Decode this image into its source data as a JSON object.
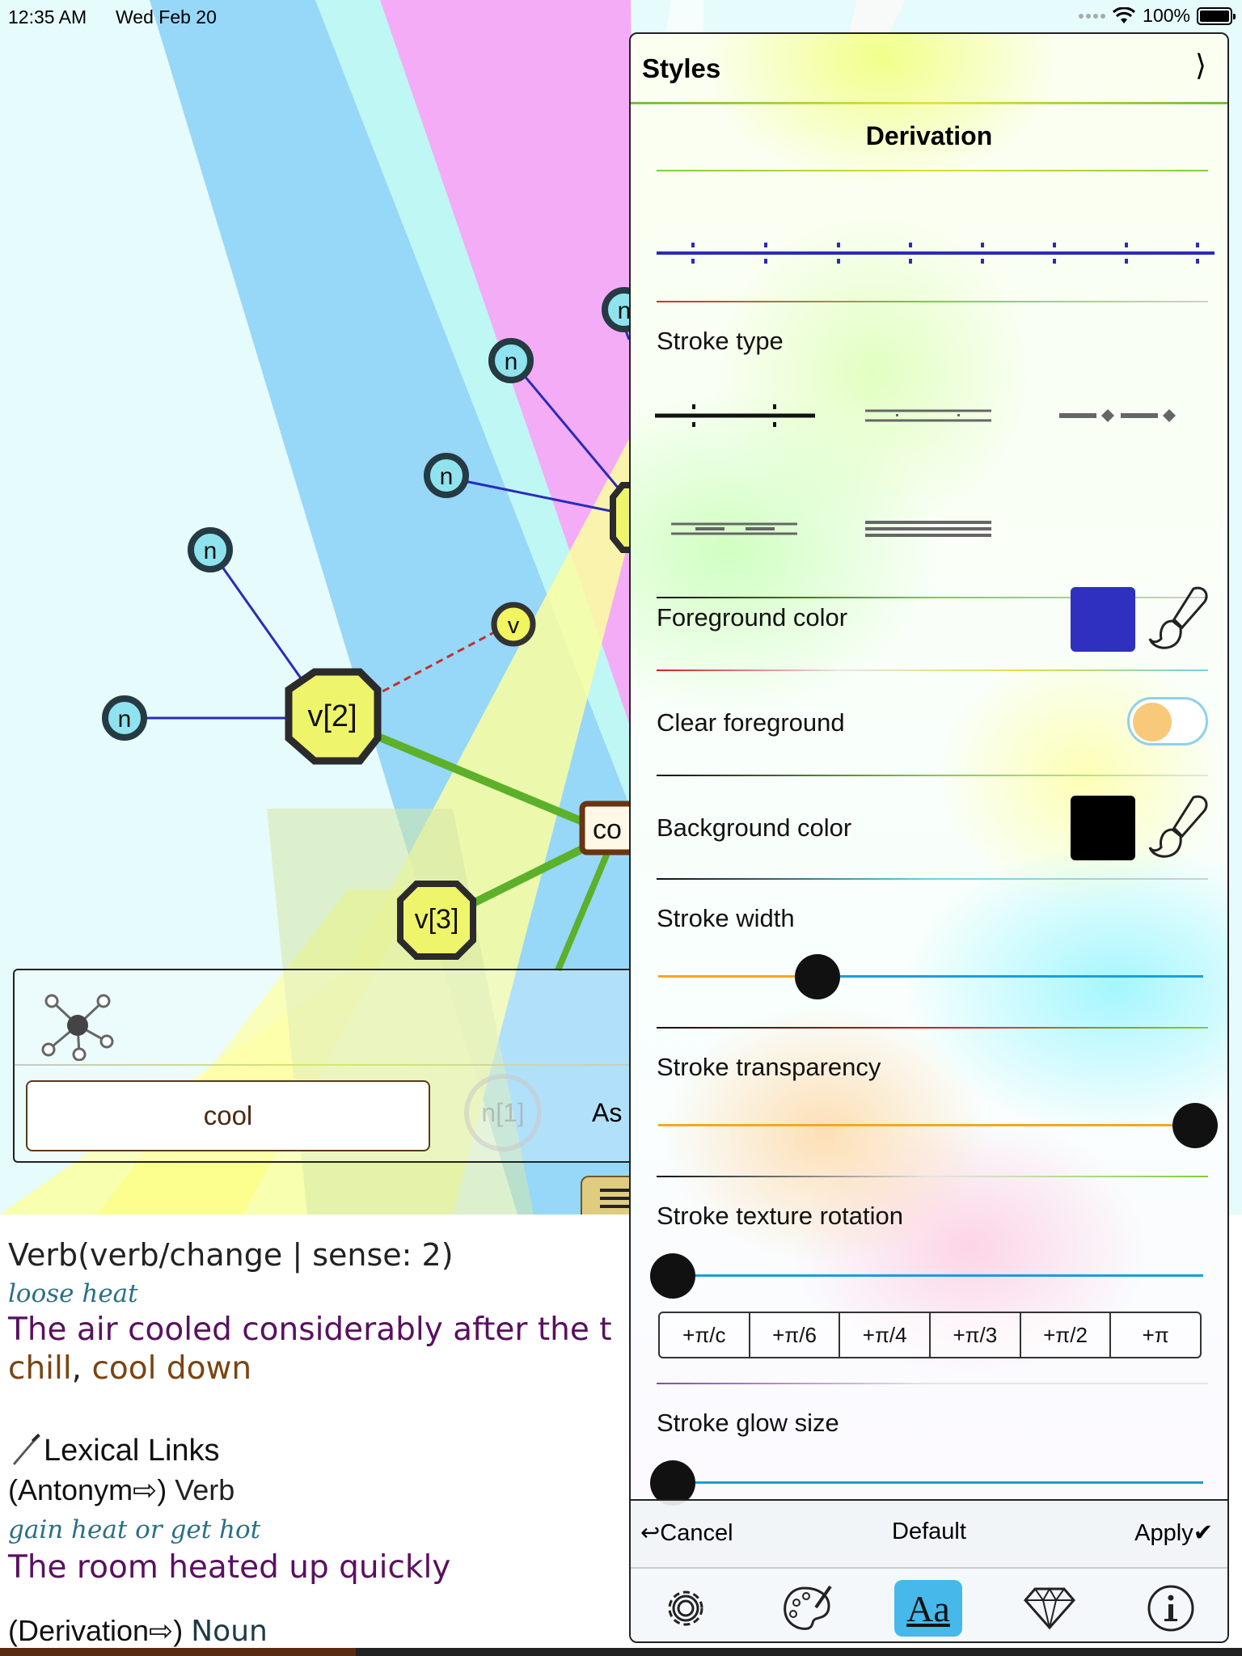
{
  "status_bar": {
    "time": "12:35 AM",
    "date": "Wed Feb 20",
    "battery": "100%"
  },
  "graph": {
    "nodes": {
      "v2": "v[2]",
      "v3": "v[3]",
      "v_small": "v",
      "n": "n",
      "center_partial": "co"
    }
  },
  "toolbar": {
    "hub_icon": "network-hub-icon",
    "word_field": "cool",
    "ghost_node": "n[1]",
    "ask_label": "As"
  },
  "definitions": {
    "sense_header": "Verb(verb/change | sense: 2)",
    "gloss": "loose heat",
    "example": "The air cooled considerably after the t",
    "synonyms": [
      "chill",
      "cool down"
    ],
    "lexical_links_heading": "Lexical Links",
    "antonym_relation": "(Antonym⇨)",
    "antonym_pos": "Verb",
    "antonym_gloss": "gain heat or get hot",
    "antonym_example": "The room heated up quickly",
    "derivation_relation": "(Derivation⇨)",
    "derivation_pos": "Noun"
  },
  "panel": {
    "title": "Styles",
    "chevron": "⟩",
    "section_title": "Derivation",
    "stroke_type_label": "Stroke type",
    "foreground_color_label": "Foreground color",
    "foreground_color": "#2f2fc0",
    "clear_foreground_label": "Clear foreground",
    "clear_foreground_on": false,
    "background_color_label": "Background color",
    "background_color": "#000000",
    "stroke_width_label": "Stroke width",
    "stroke_width_value": 0.29,
    "stroke_transparency_label": "Stroke transparency",
    "stroke_transparency_value": 1.0,
    "stroke_texture_rotation_label": "Stroke texture rotation",
    "stroke_texture_rotation_value": 0.0,
    "rotation_buttons": [
      "+π/c",
      "+π/6",
      "+π/4",
      "+π/3",
      "+π/2",
      "+π"
    ],
    "stroke_glow_size_label": "Stroke glow size",
    "stroke_glow_size_value": 0.0,
    "cancel_label": "↩Cancel",
    "default_label": "Default",
    "apply_label": "Apply✔",
    "tabs": [
      {
        "icon": "gear-icon"
      },
      {
        "icon": "palette-icon"
      },
      {
        "icon": "text-style-icon",
        "label": "Aa",
        "active": true
      },
      {
        "icon": "diamond-icon"
      },
      {
        "icon": "info-icon"
      }
    ]
  }
}
